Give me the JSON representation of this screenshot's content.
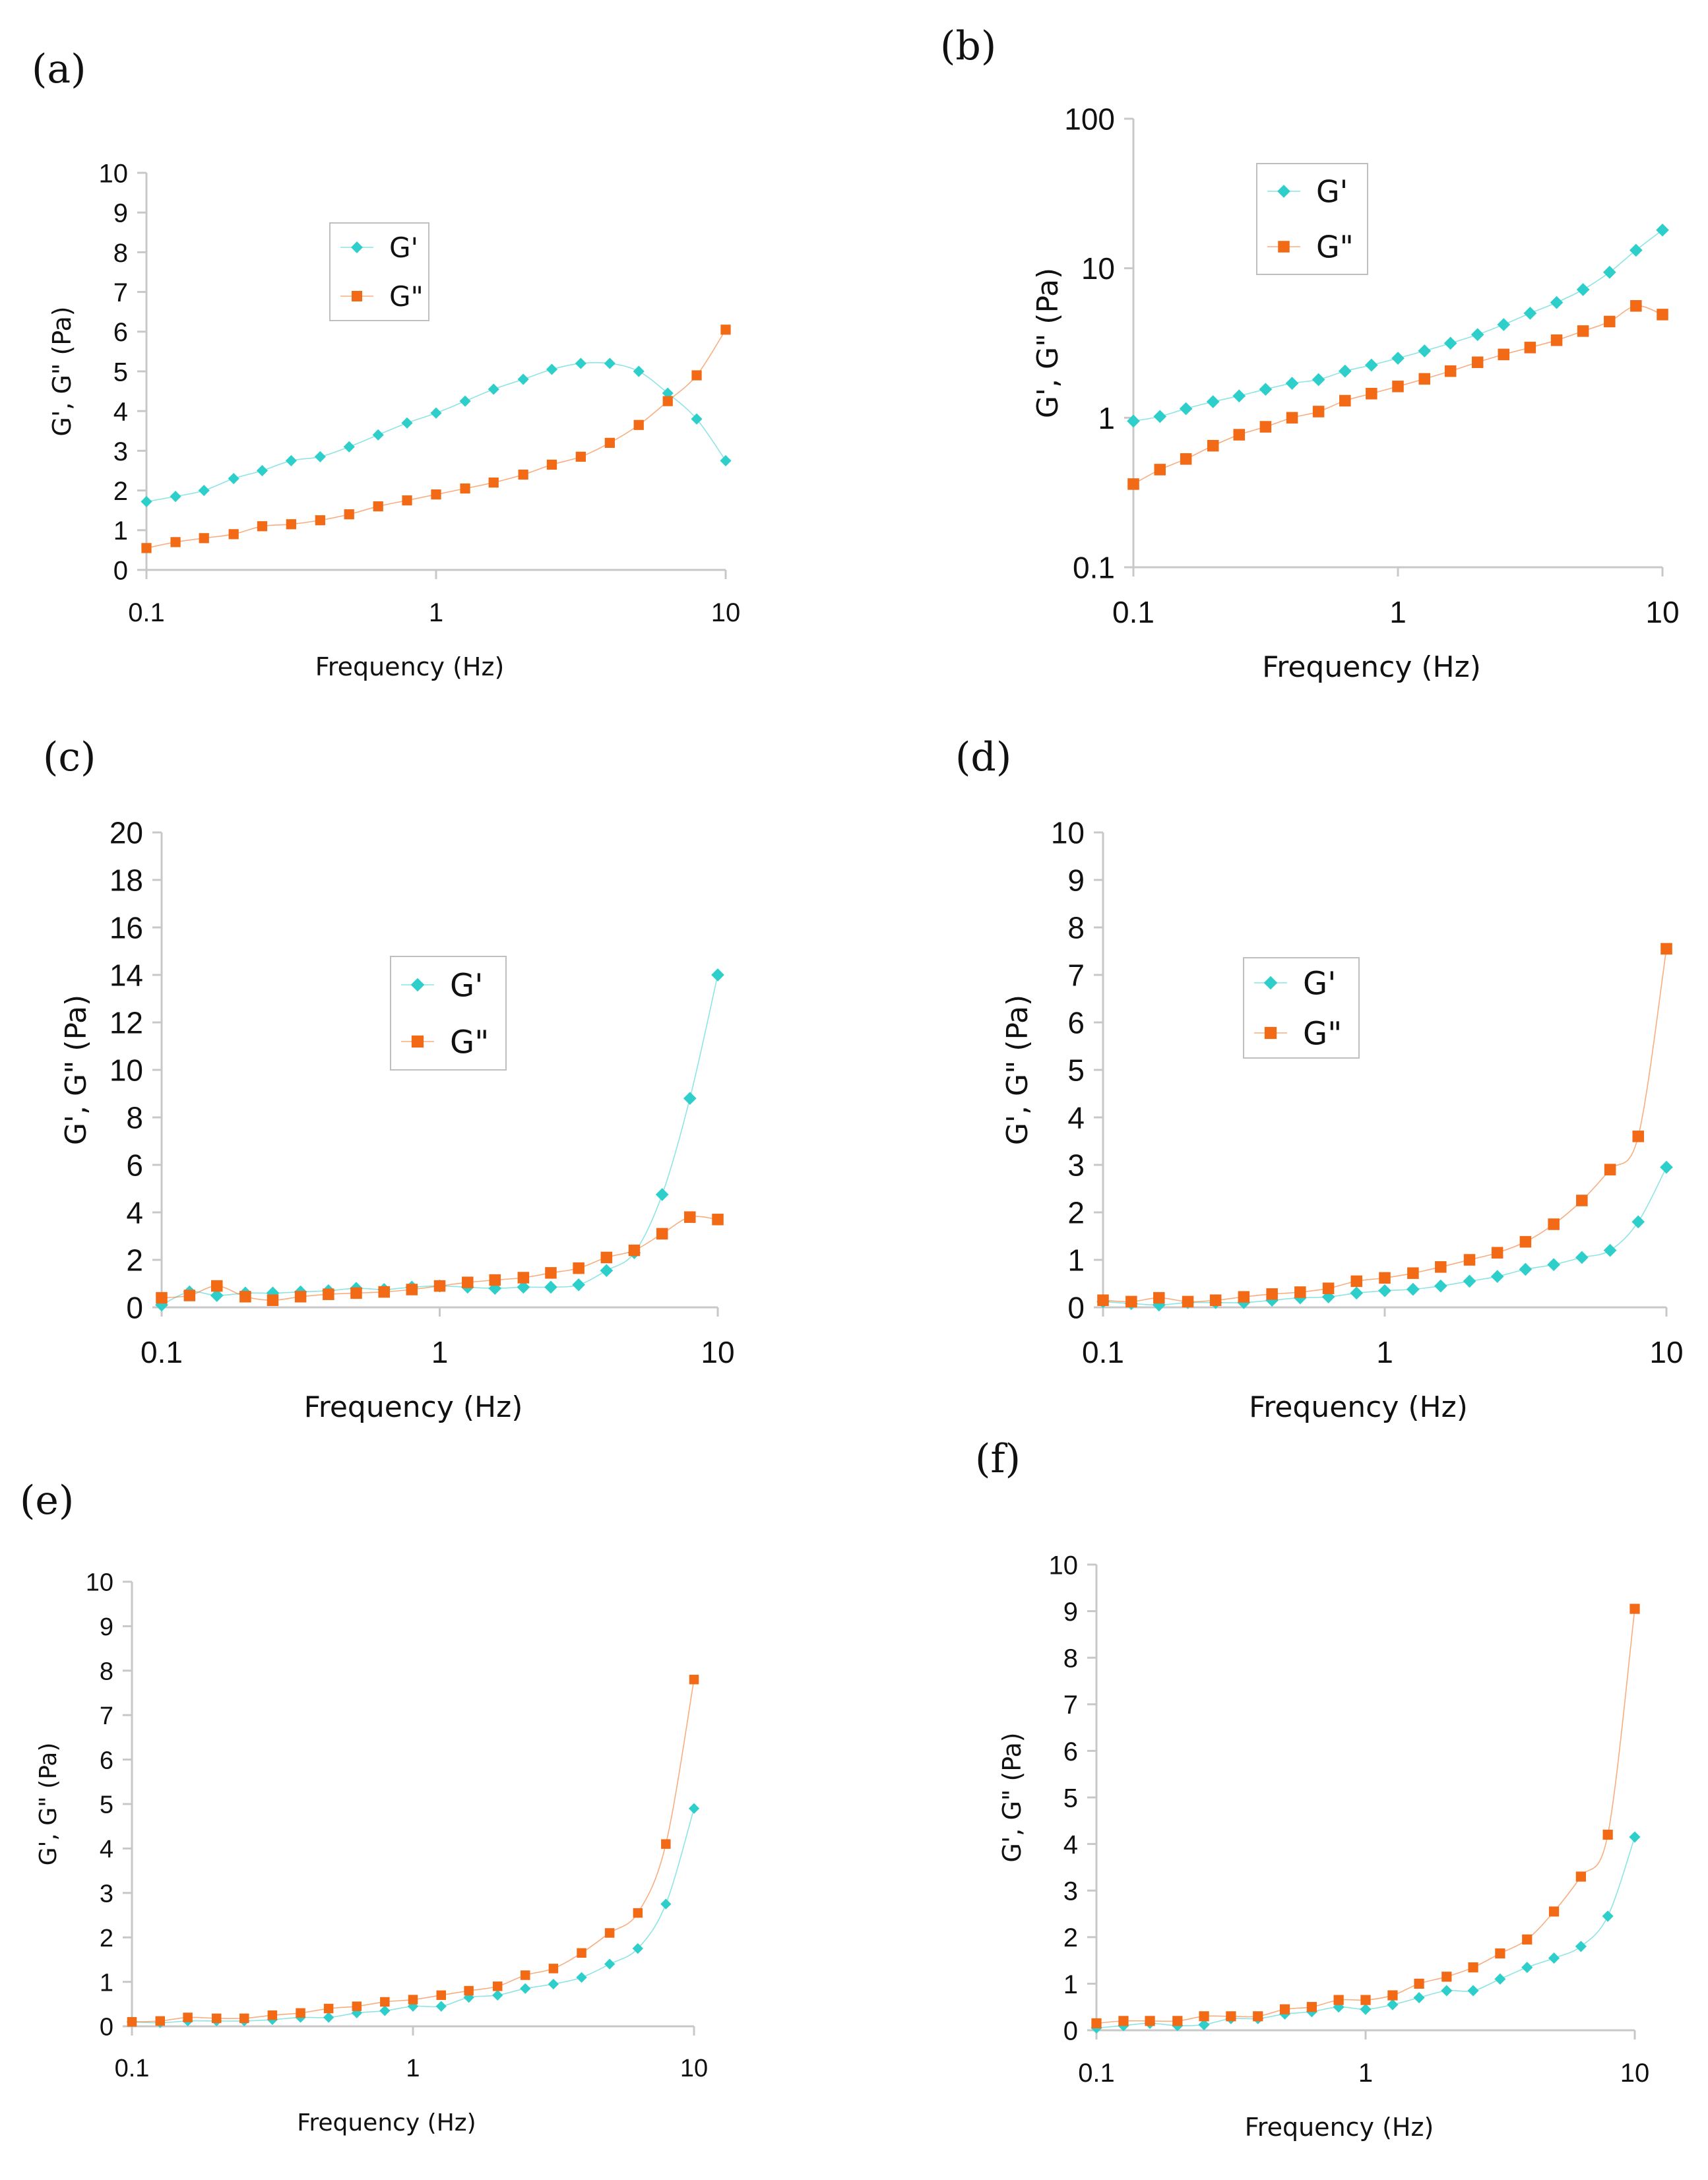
{
  "figure": {
    "colors": {
      "g_prime": "#2ECFCB",
      "g_double_prime": "#F26A16",
      "axis": "#C8C8C8",
      "text": "#111111",
      "legend_border": "#BFBFBF"
    },
    "legend_labels": [
      "G'",
      "G\""
    ]
  },
  "chart_data": [
    {
      "id": "a",
      "panel_label": "(a)",
      "type": "line",
      "yscale": "linear",
      "xscale": "log",
      "xlabel": "Frequency (Hz)",
      "ylabel": "G', G\" (Pa)",
      "xlim": [
        0.1,
        10
      ],
      "ylim": [
        0,
        10
      ],
      "xticks": [
        0.1,
        1,
        10
      ],
      "xtick_labels": [
        "0.1",
        "1",
        "10"
      ],
      "yticks": [
        0,
        1,
        2,
        3,
        4,
        5,
        6,
        7,
        8,
        9,
        10
      ],
      "ytick_labels": [
        "0",
        "1",
        "2",
        "3",
        "4",
        "5",
        "6",
        "7",
        "8",
        "9",
        "10"
      ],
      "legend": true,
      "x": [
        0.1,
        0.126,
        0.158,
        0.2,
        0.251,
        0.316,
        0.398,
        0.501,
        0.631,
        0.794,
        1,
        1.26,
        1.58,
        2,
        2.51,
        3.16,
        3.98,
        5.01,
        6.31,
        7.94,
        10
      ],
      "series": [
        {
          "name": "G'",
          "values": [
            1.72,
            1.85,
            2.0,
            2.3,
            2.5,
            2.75,
            2.85,
            3.1,
            3.4,
            3.7,
            3.95,
            4.25,
            4.55,
            4.8,
            5.05,
            5.2,
            5.2,
            5.0,
            4.45,
            3.8,
            2.75
          ]
        },
        {
          "name": "G\"",
          "values": [
            0.55,
            0.7,
            0.8,
            0.9,
            1.1,
            1.15,
            1.25,
            1.4,
            1.6,
            1.75,
            1.9,
            2.05,
            2.2,
            2.4,
            2.65,
            2.85,
            3.2,
            3.65,
            4.25,
            4.9,
            6.05
          ]
        }
      ]
    },
    {
      "id": "b",
      "panel_label": "(b)",
      "type": "line",
      "yscale": "log",
      "xscale": "log",
      "xlabel": "Frequency (Hz)",
      "ylabel": "G', G\" (Pa)",
      "xlim": [
        0.1,
        10
      ],
      "ylim": [
        0.1,
        100
      ],
      "xticks": [
        0.1,
        1,
        10
      ],
      "xtick_labels": [
        "0.1",
        "1",
        "10"
      ],
      "yticks": [
        0.1,
        1,
        10,
        100
      ],
      "ytick_labels": [
        "0.1",
        "1",
        "10",
        "100"
      ],
      "legend": true,
      "x": [
        0.1,
        0.126,
        0.158,
        0.2,
        0.251,
        0.316,
        0.398,
        0.501,
        0.631,
        0.794,
        1,
        1.26,
        1.58,
        2,
        2.51,
        3.16,
        3.98,
        5.01,
        6.31,
        7.94,
        10
      ],
      "series": [
        {
          "name": "G'",
          "values": [
            0.95,
            1.02,
            1.15,
            1.28,
            1.4,
            1.55,
            1.7,
            1.8,
            2.05,
            2.25,
            2.5,
            2.8,
            3.15,
            3.6,
            4.2,
            5.0,
            5.9,
            7.2,
            9.4,
            13.2,
            18.0
          ]
        },
        {
          "name": "G\"",
          "values": [
            0.36,
            0.45,
            0.53,
            0.65,
            0.77,
            0.87,
            1.0,
            1.1,
            1.3,
            1.45,
            1.62,
            1.82,
            2.05,
            2.35,
            2.65,
            2.95,
            3.3,
            3.8,
            4.4,
            5.6,
            4.9
          ]
        }
      ]
    },
    {
      "id": "c",
      "panel_label": "(c)",
      "type": "line",
      "yscale": "linear",
      "xscale": "log",
      "xlabel": "Frequency (Hz)",
      "ylabel": "G', G\" (Pa)",
      "xlim": [
        0.1,
        10
      ],
      "ylim": [
        0,
        20
      ],
      "xticks": [
        0.1,
        1,
        10
      ],
      "xtick_labels": [
        "0.1",
        "1",
        "10"
      ],
      "yticks": [
        0,
        2,
        4,
        6,
        8,
        10,
        12,
        14,
        16,
        18,
        20
      ],
      "ytick_labels": [
        "0",
        "2",
        "4",
        "6",
        "8",
        "10",
        "12",
        "14",
        "16",
        "18",
        "20"
      ],
      "legend": true,
      "x": [
        0.1,
        0.126,
        0.158,
        0.2,
        0.251,
        0.316,
        0.398,
        0.501,
        0.631,
        0.794,
        1,
        1.26,
        1.58,
        2,
        2.51,
        3.16,
        3.98,
        5.01,
        6.31,
        7.94,
        10
      ],
      "series": [
        {
          "name": "G'",
          "values": [
            0.1,
            0.65,
            0.5,
            0.6,
            0.6,
            0.65,
            0.7,
            0.8,
            0.75,
            0.85,
            0.9,
            0.85,
            0.8,
            0.85,
            0.85,
            0.95,
            1.55,
            2.3,
            4.75,
            8.8,
            14.0
          ]
        },
        {
          "name": "G\"",
          "values": [
            0.4,
            0.5,
            0.9,
            0.45,
            0.3,
            0.45,
            0.55,
            0.6,
            0.65,
            0.75,
            0.9,
            1.05,
            1.15,
            1.25,
            1.45,
            1.65,
            2.1,
            2.4,
            3.1,
            3.8,
            3.7
          ]
        }
      ]
    },
    {
      "id": "d",
      "panel_label": "(d)",
      "type": "line",
      "yscale": "linear",
      "xscale": "log",
      "xlabel": "Frequency (Hz)",
      "ylabel": "G', G\" (Pa)",
      "xlim": [
        0.1,
        10
      ],
      "ylim": [
        0,
        10
      ],
      "xticks": [
        0.1,
        1,
        10
      ],
      "xtick_labels": [
        "0.1",
        "1",
        "10"
      ],
      "yticks": [
        0,
        1,
        2,
        3,
        4,
        5,
        6,
        7,
        8,
        9,
        10
      ],
      "ytick_labels": [
        "0",
        "1",
        "2",
        "3",
        "4",
        "5",
        "6",
        "7",
        "8",
        "9",
        "10"
      ],
      "legend": true,
      "x": [
        0.1,
        0.126,
        0.158,
        0.2,
        0.251,
        0.316,
        0.398,
        0.501,
        0.631,
        0.794,
        1,
        1.26,
        1.58,
        2,
        2.51,
        3.16,
        3.98,
        5.01,
        6.31,
        7.94,
        10
      ],
      "series": [
        {
          "name": "G'",
          "values": [
            0.12,
            0.08,
            0.05,
            0.1,
            0.1,
            0.1,
            0.15,
            0.2,
            0.22,
            0.3,
            0.35,
            0.38,
            0.45,
            0.55,
            0.65,
            0.8,
            0.9,
            1.05,
            1.2,
            1.8,
            2.95
          ]
        },
        {
          "name": "G\"",
          "values": [
            0.15,
            0.12,
            0.2,
            0.12,
            0.15,
            0.22,
            0.28,
            0.32,
            0.4,
            0.55,
            0.62,
            0.72,
            0.85,
            1.0,
            1.15,
            1.38,
            1.75,
            2.25,
            2.9,
            3.6,
            7.55
          ]
        }
      ]
    },
    {
      "id": "e",
      "panel_label": "(e)",
      "type": "line",
      "yscale": "linear",
      "xscale": "log",
      "xlabel": "Frequency (Hz)",
      "ylabel": "G', G\" (Pa)",
      "xlim": [
        0.1,
        10
      ],
      "ylim": [
        0,
        10
      ],
      "xticks": [
        0.1,
        1,
        10
      ],
      "xtick_labels": [
        "0.1",
        "1",
        "10"
      ],
      "yticks": [
        0,
        1,
        2,
        3,
        4,
        5,
        6,
        7,
        8,
        9,
        10
      ],
      "ytick_labels": [
        "0",
        "1",
        "2",
        "3",
        "4",
        "5",
        "6",
        "7",
        "8",
        "9",
        "10"
      ],
      "legend": false,
      "x": [
        0.1,
        0.126,
        0.158,
        0.2,
        0.251,
        0.316,
        0.398,
        0.501,
        0.631,
        0.794,
        1,
        1.26,
        1.58,
        2,
        2.51,
        3.16,
        3.98,
        5.01,
        6.31,
        7.94,
        10
      ],
      "series": [
        {
          "name": "G'",
          "values": [
            0.1,
            0.08,
            0.12,
            0.12,
            0.12,
            0.15,
            0.2,
            0.2,
            0.3,
            0.35,
            0.45,
            0.45,
            0.65,
            0.7,
            0.85,
            0.95,
            1.1,
            1.4,
            1.75,
            2.75,
            4.9
          ]
        },
        {
          "name": "G\"",
          "values": [
            0.1,
            0.12,
            0.2,
            0.18,
            0.18,
            0.25,
            0.3,
            0.4,
            0.45,
            0.55,
            0.6,
            0.7,
            0.8,
            0.9,
            1.15,
            1.3,
            1.65,
            2.1,
            2.55,
            4.1,
            7.8
          ]
        }
      ]
    },
    {
      "id": "f",
      "panel_label": "(f)",
      "type": "line",
      "yscale": "linear",
      "xscale": "log",
      "xlabel": "Frequency (Hz)",
      "ylabel": "G', G\" (Pa)",
      "xlim": [
        0.1,
        10
      ],
      "ylim": [
        0,
        10
      ],
      "xticks": [
        0.1,
        1,
        10
      ],
      "xtick_labels": [
        "0.1",
        "1",
        "10"
      ],
      "yticks": [
        0,
        1,
        2,
        3,
        4,
        5,
        6,
        7,
        8,
        9,
        10
      ],
      "ytick_labels": [
        "0",
        "1",
        "2",
        "3",
        "4",
        "5",
        "6",
        "7",
        "8",
        "9",
        "10"
      ],
      "legend": false,
      "x": [
        0.1,
        0.126,
        0.158,
        0.2,
        0.251,
        0.316,
        0.398,
        0.501,
        0.631,
        0.794,
        1,
        1.26,
        1.58,
        2,
        2.51,
        3.16,
        3.98,
        5.01,
        6.31,
        7.94,
        10
      ],
      "series": [
        {
          "name": "G'",
          "values": [
            0.05,
            0.1,
            0.15,
            0.1,
            0.12,
            0.25,
            0.25,
            0.35,
            0.4,
            0.5,
            0.45,
            0.55,
            0.7,
            0.85,
            0.85,
            1.1,
            1.35,
            1.55,
            1.8,
            2.45,
            4.15
          ]
        },
        {
          "name": "G\"",
          "values": [
            0.15,
            0.2,
            0.2,
            0.2,
            0.3,
            0.3,
            0.3,
            0.45,
            0.5,
            0.65,
            0.65,
            0.75,
            1.0,
            1.15,
            1.35,
            1.65,
            1.95,
            2.55,
            3.3,
            4.2,
            9.05
          ]
        }
      ]
    }
  ]
}
